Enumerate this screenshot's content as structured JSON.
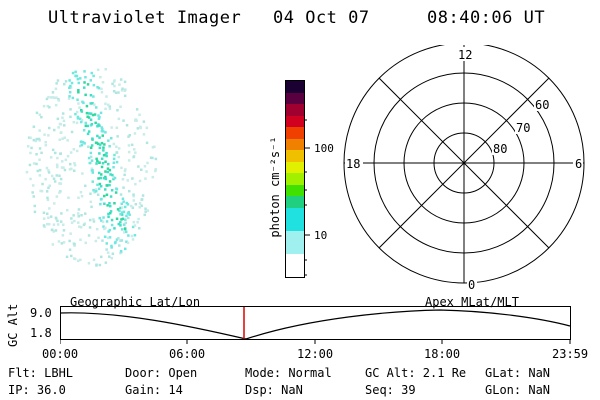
{
  "header": {
    "title": "Ultraviolet Imager",
    "date": "04 Oct 07",
    "time": "08:40:06 UT"
  },
  "colorbar": {
    "unit_label": "photon cm⁻²s⁻¹",
    "tick_100": "100",
    "tick_10": "10",
    "colors": [
      "#1a0033",
      "#5a0040",
      "#a00030",
      "#d00020",
      "#f04000",
      "#f08000",
      "#f0c000",
      "#e0f000",
      "#a0f000",
      "#40e000",
      "#20d080",
      "#20e0e0",
      "#a0f0f0",
      "#ffffff"
    ]
  },
  "polar": {
    "mlt_labels": {
      "top": "12",
      "left": "18",
      "right": "6",
      "bottom": "0"
    },
    "lat_labels": [
      "60",
      "70",
      "80"
    ]
  },
  "orbit": {
    "y_axis_label": "GC Alt",
    "y_max": "9.0",
    "y_min": "1.8",
    "left_title": "Geographic Lat/Lon",
    "right_title": "Apex  MLat/MLT",
    "time_ticks": [
      "00:00",
      "06:00",
      "12:00",
      "18:00",
      "23:59"
    ],
    "marker_color": "#dd0000"
  },
  "info": {
    "flt": "Flt: LBHL",
    "ip": "IP: 36.0",
    "door": "Door: Open",
    "gain": "Gain: 14",
    "mode": "Mode: Normal",
    "dsp": "Dsp:    NaN",
    "gcalt": "GC Alt: 2.1 Re",
    "seq": "Seq: 39",
    "glat": "GLat:   NaN",
    "glon": "GLon:   NaN"
  }
}
